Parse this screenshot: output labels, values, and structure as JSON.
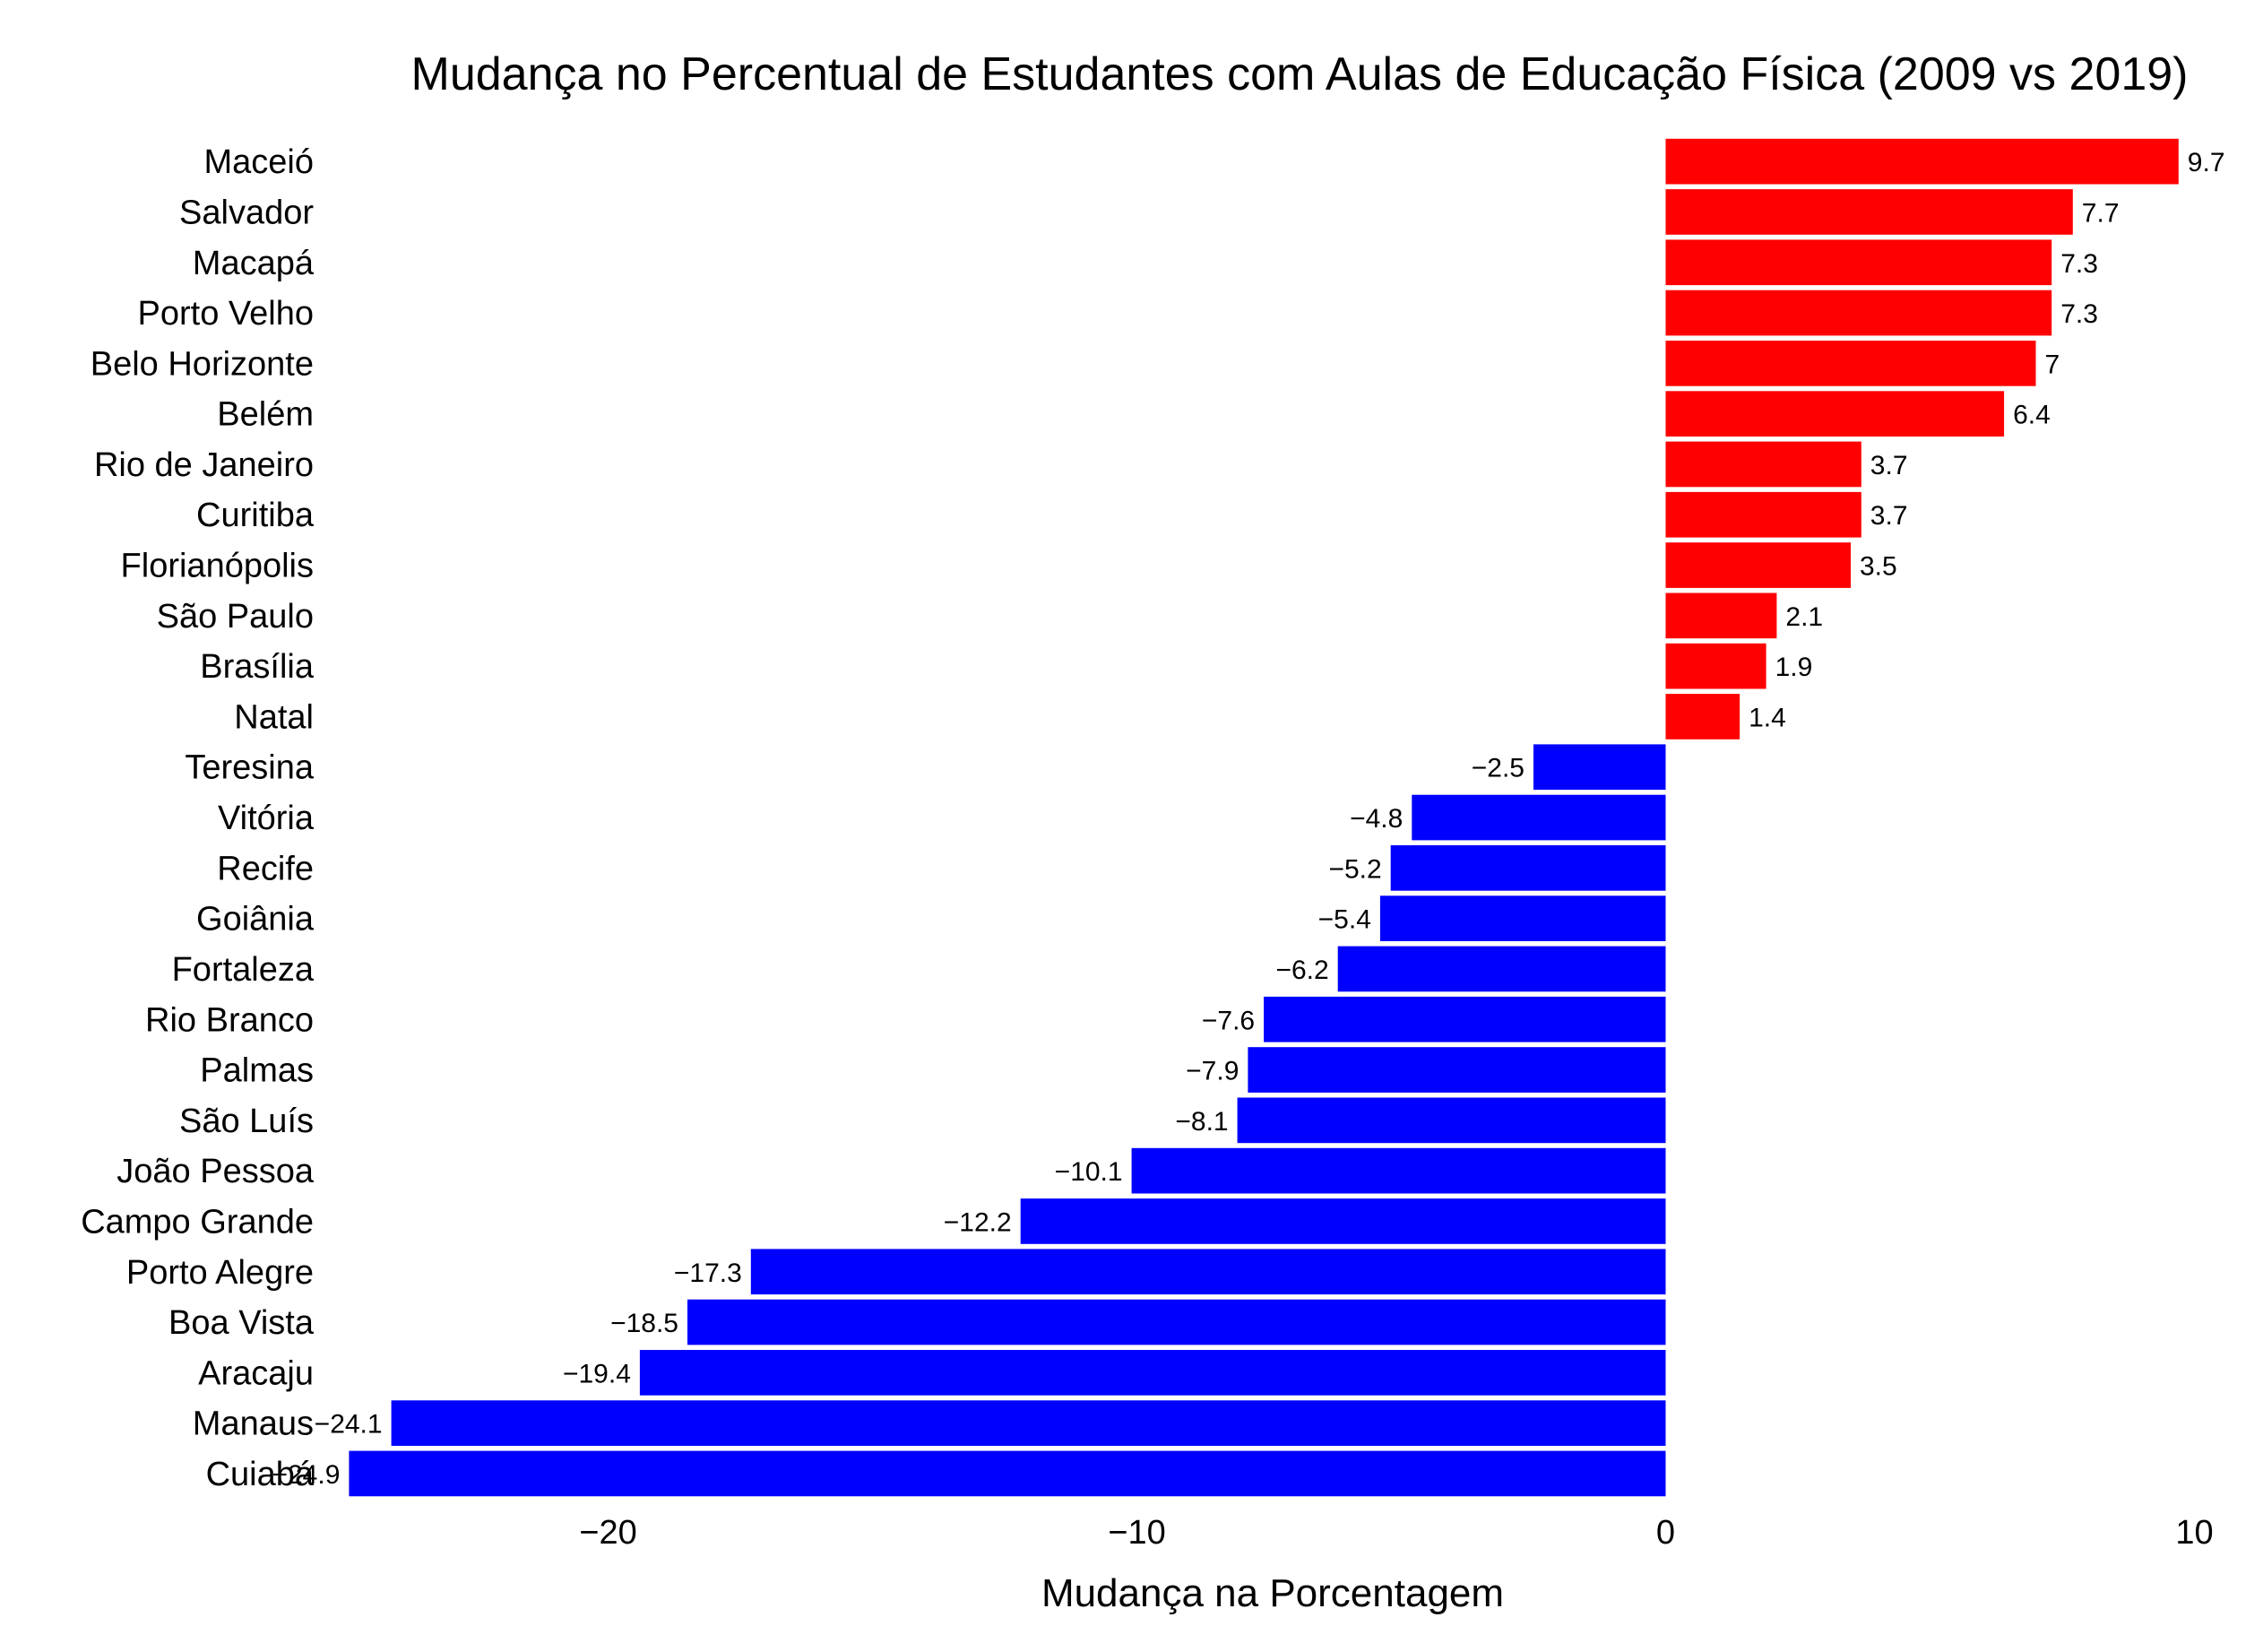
{
  "chart_data": {
    "type": "bar",
    "orientation": "horizontal",
    "title": "Mudança no Percentual de Estudantes com Aulas de Educação Física (2009 vs 2019)",
    "xlabel": "Mudança na Porcentagem",
    "ylabel": "",
    "xlim": [
      -25.5,
      10.5
    ],
    "xticks": [
      -20,
      -10,
      0,
      10
    ],
    "xtick_labels": [
      "−20",
      "−10",
      "0",
      "10"
    ],
    "grid": false,
    "legend": "none",
    "colors": {
      "positive": "#ff0000",
      "negative": "#0000ff"
    },
    "categories": [
      "Maceió",
      "Salvador",
      "Macapá",
      "Porto Velho",
      "Belo Horizonte",
      "Belém",
      "Rio de Janeiro",
      "Curitiba",
      "Florianópolis",
      "São Paulo",
      "Brasília",
      "Natal",
      "Teresina",
      "Vitória",
      "Recife",
      "Goiânia",
      "Fortaleza",
      "Rio Branco",
      "Palmas",
      "São Luís",
      "João Pessoa",
      "Campo Grande",
      "Porto Alegre",
      "Boa Vista",
      "Aracaju",
      "Manaus",
      "Cuiabá"
    ],
    "values": [
      9.7,
      7.7,
      7.3,
      7.3,
      7,
      6.4,
      3.7,
      3.7,
      3.5,
      2.1,
      1.9,
      1.4,
      -2.5,
      -4.8,
      -5.2,
      -5.4,
      -6.2,
      -7.6,
      -7.9,
      -8.1,
      -10.1,
      -12.2,
      -17.3,
      -18.5,
      -19.4,
      -24.1,
      -24.9
    ],
    "value_labels": [
      "9.7",
      "7.7",
      "7.3",
      "7.3",
      "7",
      "6.4",
      "3.7",
      "3.7",
      "3.5",
      "2.1",
      "1.9",
      "1.4",
      "−2.5",
      "−4.8",
      "−5.2",
      "−5.4",
      "−6.2",
      "−7.6",
      "−7.9",
      "−8.1",
      "−10.1",
      "−12.2",
      "−17.3",
      "−18.5",
      "−19.4",
      "−24.1",
      "−24.9"
    ]
  }
}
